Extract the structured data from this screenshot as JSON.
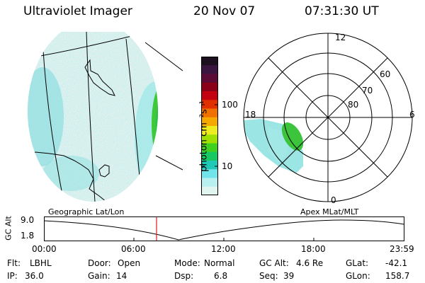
{
  "header": {
    "title": "Ultraviolet Imager",
    "date": "20 Nov 07",
    "time": "07:31:30 UT"
  },
  "colorbar": {
    "unit_label": "photon cm⁻²s⁻¹",
    "ticks": [
      "100",
      "10"
    ],
    "colors": [
      "#1c1020",
      "#3a1540",
      "#5a0c36",
      "#8a0018",
      "#c40010",
      "#e03000",
      "#f07000",
      "#f5a800",
      "#ecec20",
      "#a0e000",
      "#40d020",
      "#18c860",
      "#20c8b8",
      "#70e4e8",
      "#b8f0f0",
      "#e0f4f0"
    ]
  },
  "globe": {
    "caption": "Geographic Lat/Lon"
  },
  "polar": {
    "caption": "Apex MLat/MLT",
    "mlt_labels": {
      "top": "12",
      "left": "18",
      "right": "6",
      "bottom": "0"
    },
    "mlat_labels": [
      "60",
      "70",
      "80"
    ]
  },
  "altitude_track": {
    "ylabel": "GC Alt",
    "ymax": "9.0",
    "ymin": "1.8",
    "x_ticks": [
      "00:00",
      "06:00",
      "12:00",
      "18:00",
      "23:59"
    ],
    "current_time_marker_color": "#d02020"
  },
  "info": {
    "flt": {
      "label": "Flt:",
      "value": "LBHL"
    },
    "ip": {
      "label": "IP:",
      "value": "36.0"
    },
    "door": {
      "label": "Door:",
      "value": "Open"
    },
    "gain": {
      "label": "Gain:",
      "value": "14"
    },
    "mode": {
      "label": "Mode:",
      "value": "Normal"
    },
    "dsp": {
      "label": "Dsp:",
      "value": "6.8"
    },
    "gcalt": {
      "label": "GC Alt:",
      "value": "4.6 Re"
    },
    "seq": {
      "label": "Seq:",
      "value": "39"
    },
    "glat": {
      "label": "GLat:",
      "value": "-42.1"
    },
    "glon": {
      "label": "GLon:",
      "value": "158.7"
    }
  }
}
